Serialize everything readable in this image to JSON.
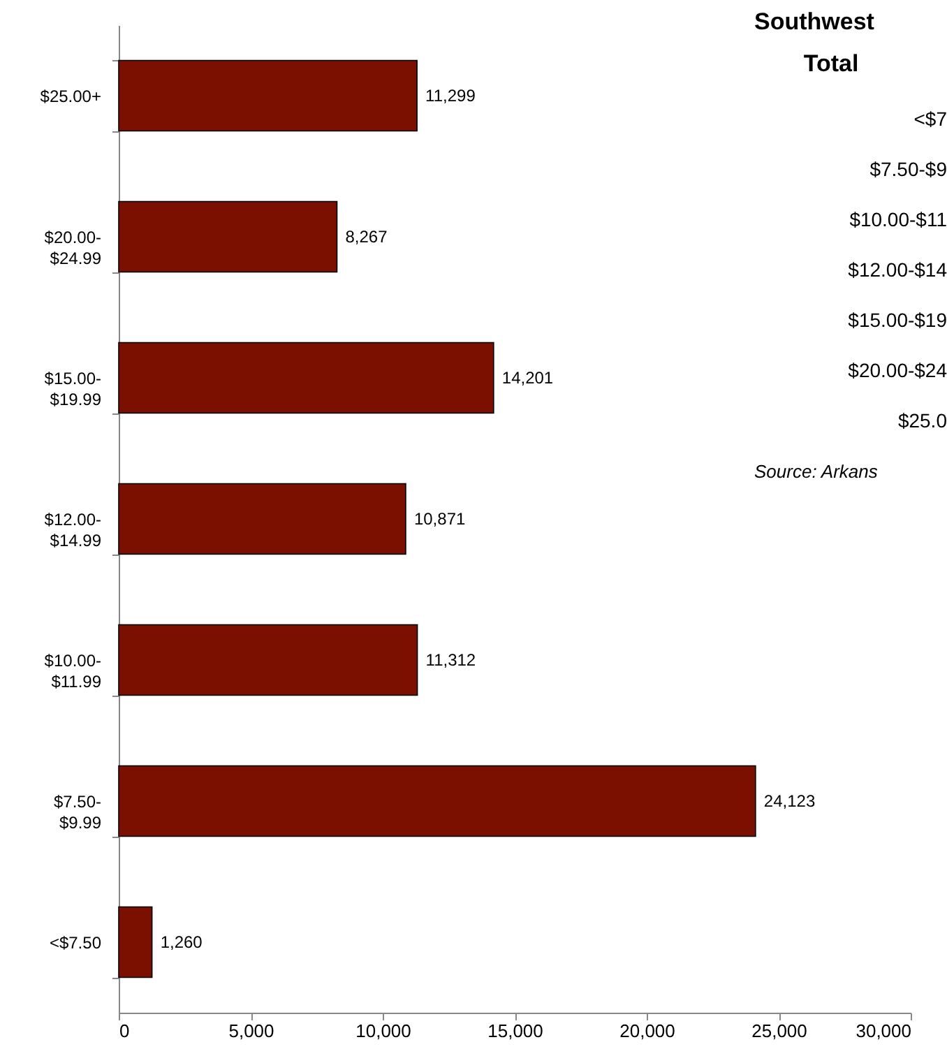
{
  "chart_data": {
    "type": "bar",
    "orientation": "horizontal",
    "title": "Southwest",
    "categories": [
      "$25.00+",
      "$20.00-$24.99",
      "$15.00-$19.99",
      "$12.00-$14.99",
      "$10.00-$11.99",
      "$7.50-$9.99",
      "<$7.50"
    ],
    "values": [
      11299,
      8267,
      14201,
      10871,
      11312,
      24123,
      1260
    ],
    "value_labels": [
      "11,299",
      "8,267",
      "14,201",
      "10,871",
      "11,312",
      "24,123",
      "1,260"
    ],
    "color": "#7b1000",
    "xlim": [
      0,
      30000
    ],
    "xticks": [
      0,
      {
        "value": 5000,
        "label": "5,000"
      },
      {
        "value": 10000,
        "label": "10,000"
      },
      {
        "value": 15000,
        "label": "15,000"
      },
      {
        "value": 20000,
        "label": "20,000"
      },
      {
        "value": 25000,
        "label": "25,000"
      },
      {
        "value": 30000,
        "label": "30,000"
      }
    ],
    "grid": false,
    "annotations": [
      "Total",
      "<$7",
      "$7.50-$9",
      "$10.00-$11",
      "$12.00-$14",
      "$15.00-$19",
      "$20.00-$24",
      "$25.0",
      "Source: Arkans"
    ]
  }
}
